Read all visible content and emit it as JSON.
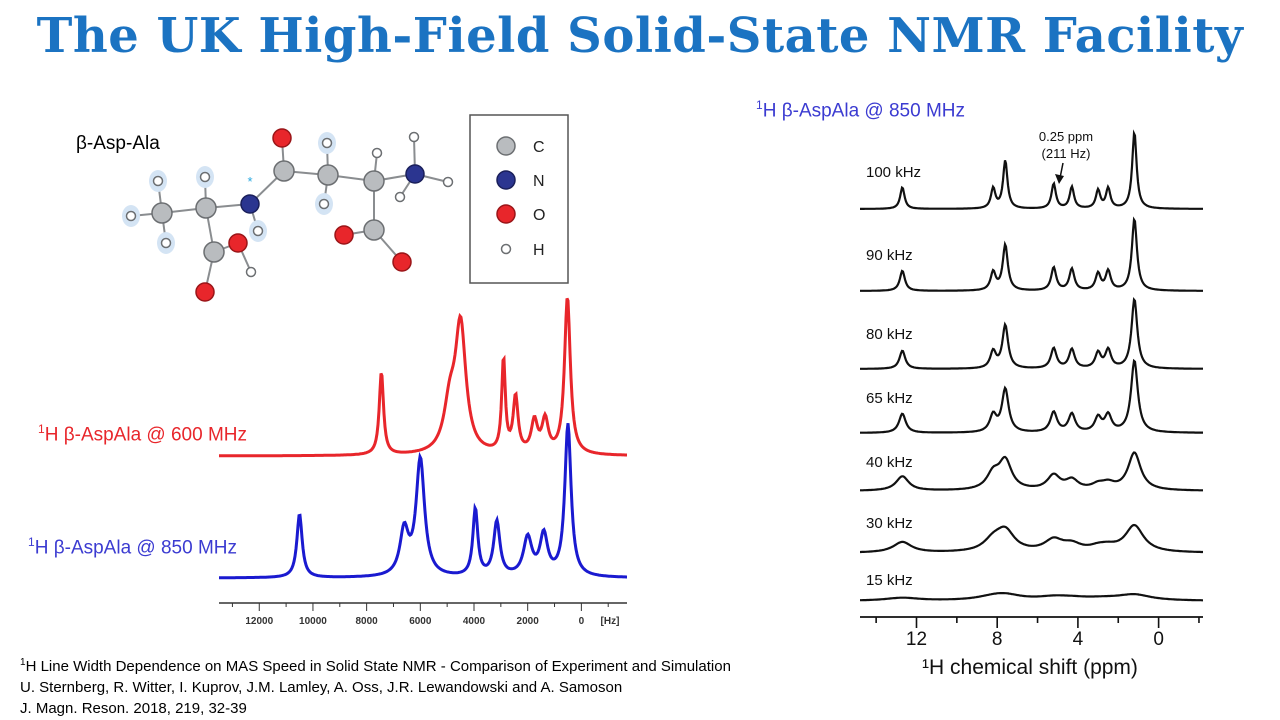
{
  "title": "The UK High-Field Solid-State NMR Facility",
  "molecule": {
    "label": "β-Asp-Ala",
    "legend": [
      {
        "symbol": "C",
        "color": "#b9bcbf"
      },
      {
        "symbol": "N",
        "color": "#2b3590"
      },
      {
        "symbol": "O",
        "color": "#e8262b"
      },
      {
        "symbol": "H",
        "color": "#ffffff"
      }
    ],
    "marker": "*"
  },
  "spectrum_600": {
    "sup": "1",
    "label": "H β-AspAla @ 600 MHz",
    "color": "#e8262b"
  },
  "spectrum_850": {
    "sup": "1",
    "label": "H β-AspAla @ 850 MHz",
    "color": "#3b3bd1"
  },
  "right_panel_label": {
    "sup": "1",
    "label": "H β-AspAla @ 850 MHz",
    "color": "#3b3bd1"
  },
  "annotation": {
    "line1": "0.25 ppm",
    "line2": "(211 Hz)"
  },
  "chart_data": [
    {
      "type": "line",
      "title": "",
      "xlabel": "[Hz]",
      "ylabel": "",
      "xlim": [
        13500,
        -1700
      ],
      "x_ticks": [
        "12000",
        "10000",
        "8000",
        "6000",
        "4000",
        "2000",
        "0",
        "[Hz]"
      ],
      "series": [
        {
          "name": "1H β-AspAla @ 600 MHz",
          "color": "#e8262b",
          "peaks": [
            {
              "hz": 7450,
              "height": 0.66,
              "width": 95
            },
            {
              "hz": 4500,
              "height": 1.0,
              "width": 240
            },
            {
              "hz": 4900,
              "height": 0.35,
              "width": 260
            },
            {
              "hz": 2900,
              "height": 0.74,
              "width": 80
            },
            {
              "hz": 2450,
              "height": 0.44,
              "width": 110
            },
            {
              "hz": 1750,
              "height": 0.25,
              "width": 140
            },
            {
              "hz": 1350,
              "height": 0.26,
              "width": 140
            },
            {
              "hz": 520,
              "height": 1.25,
              "width": 130
            }
          ]
        },
        {
          "name": "1H β-AspAla @ 850 MHz",
          "color": "#3b3bd1",
          "peaks": [
            {
              "hz": 10500,
              "height": 0.5,
              "width": 120
            },
            {
              "hz": 6000,
              "height": 0.92,
              "width": 190
            },
            {
              "hz": 6600,
              "height": 0.35,
              "width": 190
            },
            {
              "hz": 3950,
              "height": 0.53,
              "width": 110
            },
            {
              "hz": 3150,
              "height": 0.43,
              "width": 140
            },
            {
              "hz": 2000,
              "height": 0.3,
              "width": 190
            },
            {
              "hz": 1400,
              "height": 0.32,
              "width": 170
            },
            {
              "hz": 500,
              "height": 1.2,
              "width": 140
            }
          ]
        }
      ]
    },
    {
      "type": "line",
      "title": "1H β-AspAla @ 850 MHz",
      "xlabel": "¹H chemical shift (ppm)",
      "ylabel": "",
      "xlim": [
        14.8,
        -2.2
      ],
      "x_ticks": [
        "12",
        "8",
        "4",
        "0"
      ],
      "peak_ppm": [
        12.7,
        8.2,
        7.6,
        5.2,
        4.3,
        3.0,
        2.5,
        1.2
      ],
      "series": [
        {
          "name": "100 kHz",
          "heights": [
            0.45,
            0.42,
            1.0,
            0.52,
            0.45,
            0.38,
            0.42,
            1.6
          ],
          "width": 0.13
        },
        {
          "name": "90 kHz",
          "heights": [
            0.42,
            0.38,
            0.95,
            0.48,
            0.45,
            0.35,
            0.4,
            1.5
          ],
          "width": 0.15
        },
        {
          "name": "80 kHz",
          "heights": [
            0.38,
            0.35,
            0.9,
            0.42,
            0.4,
            0.32,
            0.38,
            1.45
          ],
          "width": 0.17
        },
        {
          "name": "65 kHz",
          "heights": [
            0.4,
            0.35,
            0.9,
            0.42,
            0.38,
            0.3,
            0.35,
            1.5
          ],
          "width": 0.2
        },
        {
          "name": "40 kHz",
          "heights": [
            0.3,
            0.32,
            0.6,
            0.3,
            0.2,
            0.1,
            0.12,
            0.78
          ],
          "width": 0.38
        },
        {
          "name": "30 kHz",
          "heights": [
            0.22,
            0.22,
            0.42,
            0.24,
            0.14,
            0.08,
            0.08,
            0.55
          ],
          "width": 0.55
        },
        {
          "name": "15 kHz",
          "heights": [
            0.06,
            0.06,
            0.1,
            0.06,
            0.04,
            0.02,
            0.02,
            0.12
          ],
          "width": 1.0
        }
      ]
    }
  ],
  "reference": {
    "line1_sup": "1",
    "line1": "H Line Width Dependence on MAS Speed in Solid State NMR - Comparison of Experiment and Simulation",
    "line2": "U. Sternberg, R. Witter, I. Kuprov, J.M. Lamley, A. Oss, J.R. Lewandowski and A. Samoson",
    "line3": "J. Magn. Reson. 2018, 219, 32-39"
  }
}
